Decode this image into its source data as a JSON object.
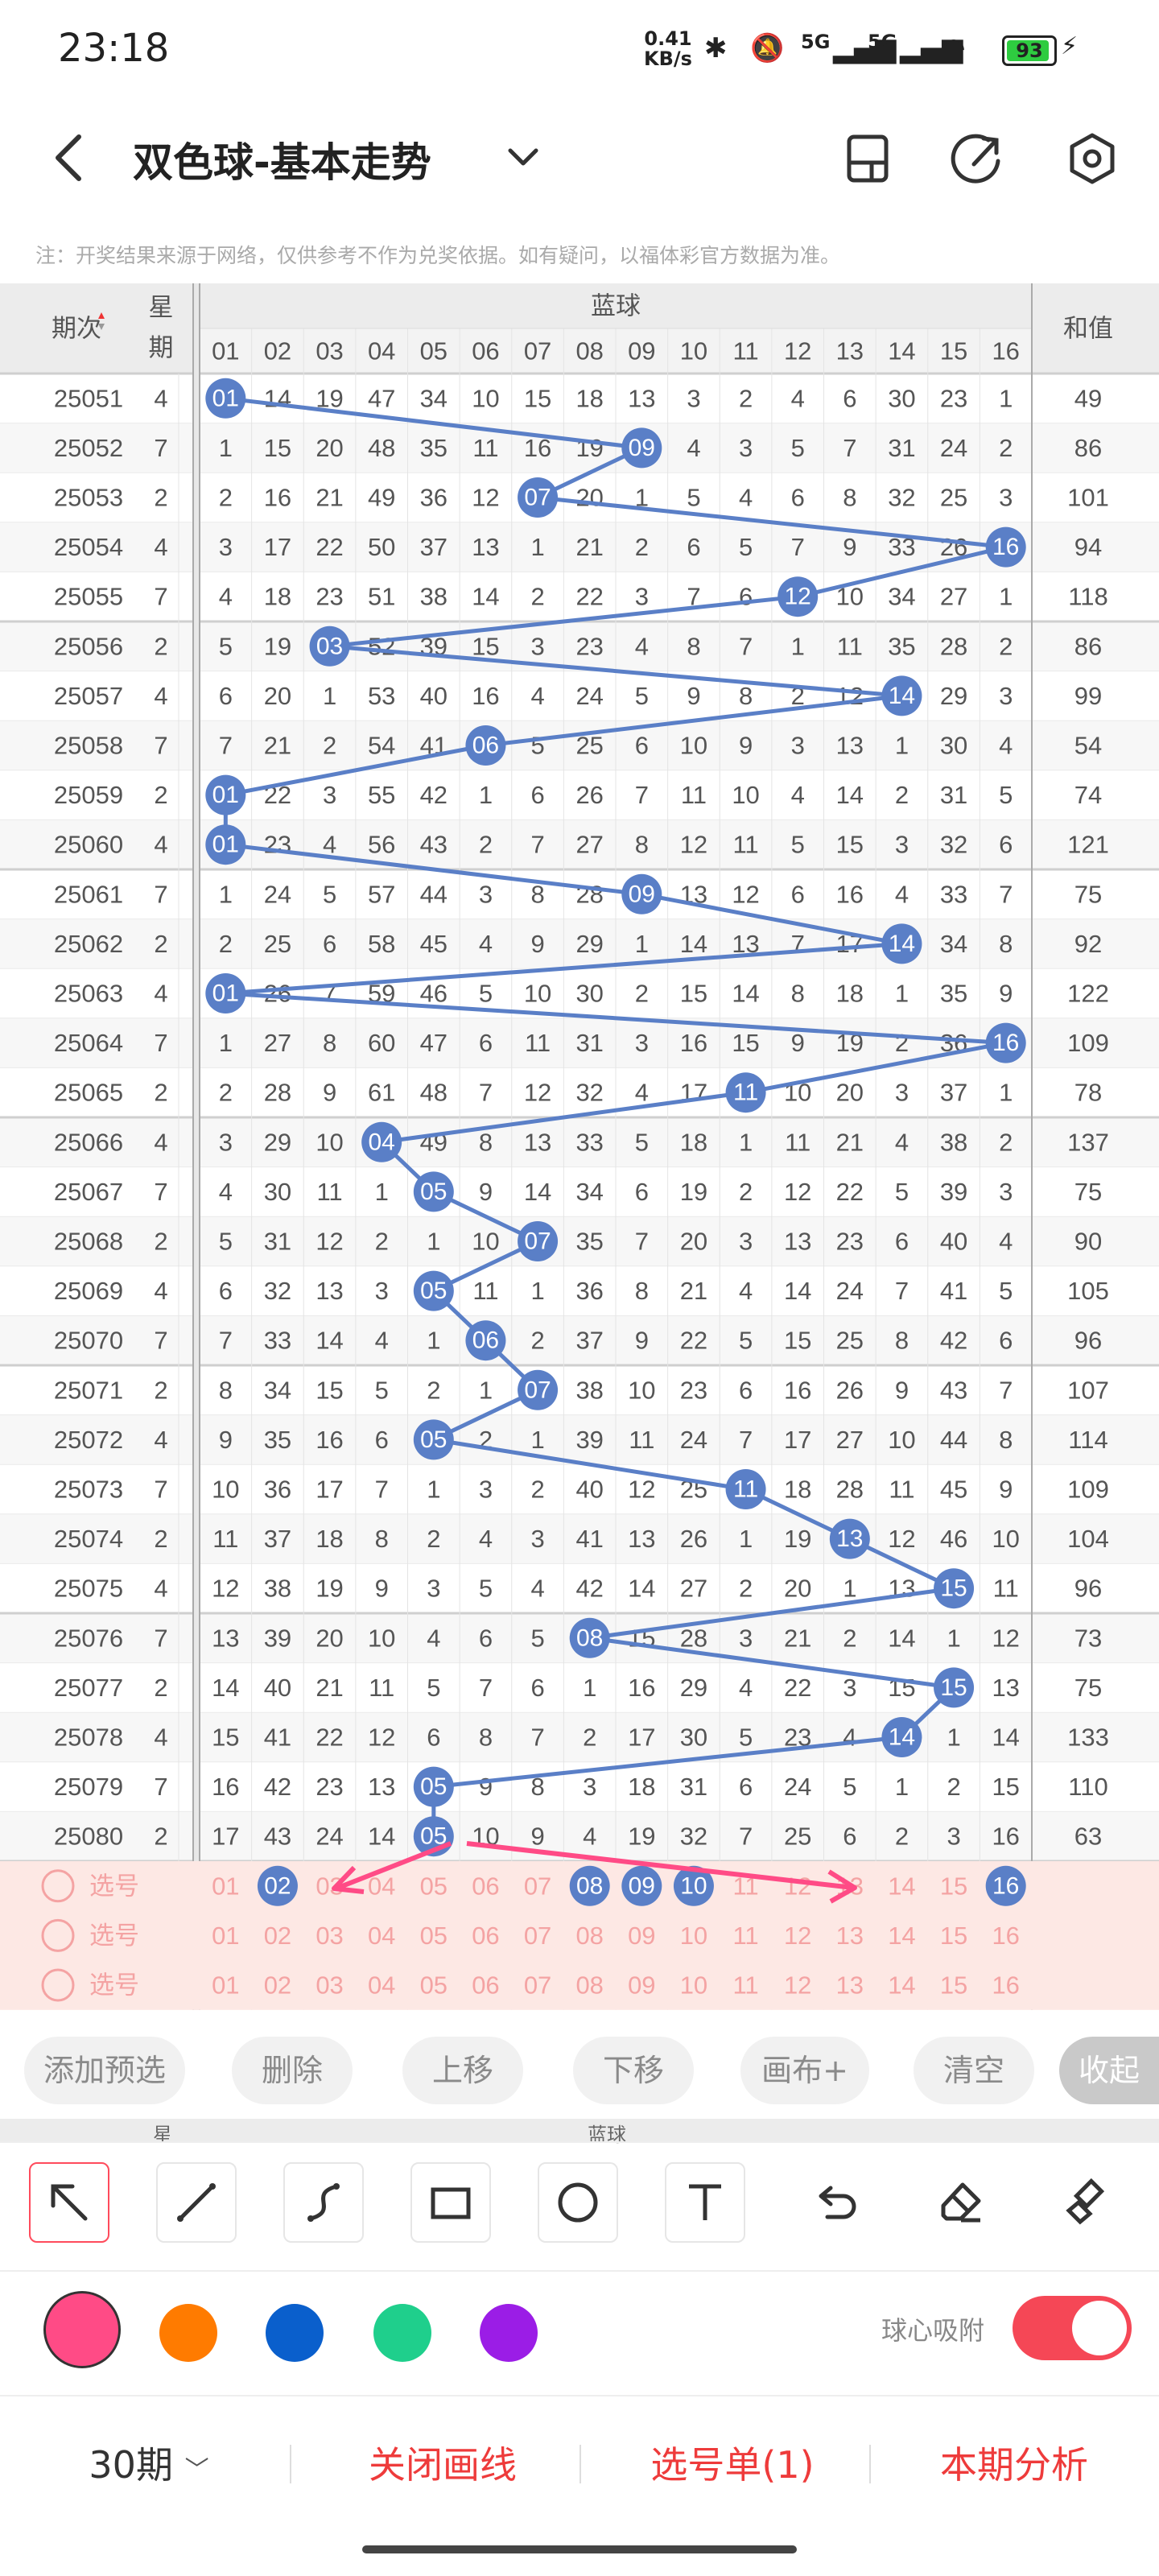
{
  "status": {
    "time": "23:18",
    "speed": "0.41\nKB/s",
    "battery": "93",
    "signal": "5G"
  },
  "title": "双色球-基本走势",
  "notice": "注：开奖结果来源于网络，仅供参考不作为兑奖依据。如有疑问，以福体彩官方数据为准。",
  "table": {
    "period_header": "期次",
    "week_header": "星期",
    "blue_header": "蓝球",
    "sum_header": "和值",
    "columns": [
      "01",
      "02",
      "03",
      "04",
      "05",
      "06",
      "07",
      "08",
      "09",
      "10",
      "11",
      "12",
      "13",
      "14",
      "15",
      "16"
    ],
    "rows": [
      {
        "period": "25051",
        "week": "4",
        "cells": [
          "01",
          "14",
          "19",
          "47",
          "34",
          "10",
          "15",
          "18",
          "13",
          "3",
          "2",
          "4",
          "6",
          "30",
          "23",
          "1"
        ],
        "sum": "49",
        "hit": 1
      },
      {
        "period": "25052",
        "week": "7",
        "cells": [
          "1",
          "15",
          "20",
          "48",
          "35",
          "11",
          "16",
          "19",
          "09",
          "4",
          "3",
          "5",
          "7",
          "31",
          "24",
          "2"
        ],
        "sum": "86",
        "hit": 9
      },
      {
        "period": "25053",
        "week": "2",
        "cells": [
          "2",
          "16",
          "21",
          "49",
          "36",
          "12",
          "07",
          "20",
          "1",
          "5",
          "4",
          "6",
          "8",
          "32",
          "25",
          "3"
        ],
        "sum": "101",
        "hit": 7
      },
      {
        "period": "25054",
        "week": "4",
        "cells": [
          "3",
          "17",
          "22",
          "50",
          "37",
          "13",
          "1",
          "21",
          "2",
          "6",
          "5",
          "7",
          "9",
          "33",
          "26",
          "16"
        ],
        "sum": "94",
        "hit": 16
      },
      {
        "period": "25055",
        "week": "7",
        "cells": [
          "4",
          "18",
          "23",
          "51",
          "38",
          "14",
          "2",
          "22",
          "3",
          "7",
          "6",
          "12",
          "10",
          "34",
          "27",
          "1"
        ],
        "sum": "118",
        "hit": 12
      },
      {
        "period": "25056",
        "week": "2",
        "cells": [
          "5",
          "19",
          "03",
          "52",
          "39",
          "15",
          "3",
          "23",
          "4",
          "8",
          "7",
          "1",
          "11",
          "35",
          "28",
          "2"
        ],
        "sum": "86",
        "hit": 3
      },
      {
        "period": "25057",
        "week": "4",
        "cells": [
          "6",
          "20",
          "1",
          "53",
          "40",
          "16",
          "4",
          "24",
          "5",
          "9",
          "8",
          "2",
          "12",
          "14",
          "29",
          "3"
        ],
        "sum": "99",
        "hit": 14
      },
      {
        "period": "25058",
        "week": "7",
        "cells": [
          "7",
          "21",
          "2",
          "54",
          "41",
          "06",
          "5",
          "25",
          "6",
          "10",
          "9",
          "3",
          "13",
          "1",
          "30",
          "4"
        ],
        "sum": "54",
        "hit": 6
      },
      {
        "period": "25059",
        "week": "2",
        "cells": [
          "01",
          "22",
          "3",
          "55",
          "42",
          "1",
          "6",
          "26",
          "7",
          "11",
          "10",
          "4",
          "14",
          "2",
          "31",
          "5"
        ],
        "sum": "74",
        "hit": 1
      },
      {
        "period": "25060",
        "week": "4",
        "cells": [
          "01",
          "23",
          "4",
          "56",
          "43",
          "2",
          "7",
          "27",
          "8",
          "12",
          "11",
          "5",
          "15",
          "3",
          "32",
          "6"
        ],
        "sum": "121",
        "hit": 1
      },
      {
        "period": "25061",
        "week": "7",
        "cells": [
          "1",
          "24",
          "5",
          "57",
          "44",
          "3",
          "8",
          "28",
          "09",
          "13",
          "12",
          "6",
          "16",
          "4",
          "33",
          "7"
        ],
        "sum": "75",
        "hit": 9
      },
      {
        "period": "25062",
        "week": "2",
        "cells": [
          "2",
          "25",
          "6",
          "58",
          "45",
          "4",
          "9",
          "29",
          "1",
          "14",
          "13",
          "7",
          "17",
          "14",
          "34",
          "8"
        ],
        "sum": "92",
        "hit": 14
      },
      {
        "period": "25063",
        "week": "4",
        "cells": [
          "01",
          "26",
          "7",
          "59",
          "46",
          "5",
          "10",
          "30",
          "2",
          "15",
          "14",
          "8",
          "18",
          "1",
          "35",
          "9"
        ],
        "sum": "122",
        "hit": 1
      },
      {
        "period": "25064",
        "week": "7",
        "cells": [
          "1",
          "27",
          "8",
          "60",
          "47",
          "6",
          "11",
          "31",
          "3",
          "16",
          "15",
          "9",
          "19",
          "2",
          "36",
          "16"
        ],
        "sum": "109",
        "hit": 16
      },
      {
        "period": "25065",
        "week": "2",
        "cells": [
          "2",
          "28",
          "9",
          "61",
          "48",
          "7",
          "12",
          "32",
          "4",
          "17",
          "11",
          "10",
          "20",
          "3",
          "37",
          "1"
        ],
        "sum": "78",
        "hit": 11
      },
      {
        "period": "25066",
        "week": "4",
        "cells": [
          "3",
          "29",
          "10",
          "04",
          "49",
          "8",
          "13",
          "33",
          "5",
          "18",
          "1",
          "11",
          "21",
          "4",
          "38",
          "2"
        ],
        "sum": "137",
        "hit": 4
      },
      {
        "period": "25067",
        "week": "7",
        "cells": [
          "4",
          "30",
          "11",
          "1",
          "05",
          "9",
          "14",
          "34",
          "6",
          "19",
          "2",
          "12",
          "22",
          "5",
          "39",
          "3"
        ],
        "sum": "75",
        "hit": 5
      },
      {
        "period": "25068",
        "week": "2",
        "cells": [
          "5",
          "31",
          "12",
          "2",
          "1",
          "10",
          "07",
          "35",
          "7",
          "20",
          "3",
          "13",
          "23",
          "6",
          "40",
          "4"
        ],
        "sum": "90",
        "hit": 7
      },
      {
        "period": "25069",
        "week": "4",
        "cells": [
          "6",
          "32",
          "13",
          "3",
          "05",
          "11",
          "1",
          "36",
          "8",
          "21",
          "4",
          "14",
          "24",
          "7",
          "41",
          "5"
        ],
        "sum": "105",
        "hit": 5
      },
      {
        "period": "25070",
        "week": "7",
        "cells": [
          "7",
          "33",
          "14",
          "4",
          "1",
          "06",
          "2",
          "37",
          "9",
          "22",
          "5",
          "15",
          "25",
          "8",
          "42",
          "6"
        ],
        "sum": "96",
        "hit": 6
      },
      {
        "period": "25071",
        "week": "2",
        "cells": [
          "8",
          "34",
          "15",
          "5",
          "2",
          "1",
          "07",
          "38",
          "10",
          "23",
          "6",
          "16",
          "26",
          "9",
          "43",
          "7"
        ],
        "sum": "107",
        "hit": 7
      },
      {
        "period": "25072",
        "week": "4",
        "cells": [
          "9",
          "35",
          "16",
          "6",
          "05",
          "2",
          "1",
          "39",
          "11",
          "24",
          "7",
          "17",
          "27",
          "10",
          "44",
          "8"
        ],
        "sum": "114",
        "hit": 5
      },
      {
        "period": "25073",
        "week": "7",
        "cells": [
          "10",
          "36",
          "17",
          "7",
          "1",
          "3",
          "2",
          "40",
          "12",
          "25",
          "11",
          "18",
          "28",
          "11",
          "45",
          "9"
        ],
        "sum": "109",
        "hit": 11
      },
      {
        "period": "25074",
        "week": "2",
        "cells": [
          "11",
          "37",
          "18",
          "8",
          "2",
          "4",
          "3",
          "41",
          "13",
          "26",
          "1",
          "19",
          "13",
          "12",
          "46",
          "10"
        ],
        "sum": "104",
        "hit": 13
      },
      {
        "period": "25075",
        "week": "4",
        "cells": [
          "12",
          "38",
          "19",
          "9",
          "3",
          "5",
          "4",
          "42",
          "14",
          "27",
          "2",
          "20",
          "1",
          "13",
          "15",
          "11"
        ],
        "sum": "96",
        "hit": 15
      },
      {
        "period": "25076",
        "week": "7",
        "cells": [
          "13",
          "39",
          "20",
          "10",
          "4",
          "6",
          "5",
          "08",
          "15",
          "28",
          "3",
          "21",
          "2",
          "14",
          "1",
          "12"
        ],
        "sum": "73",
        "hit": 8
      },
      {
        "period": "25077",
        "week": "2",
        "cells": [
          "14",
          "40",
          "21",
          "11",
          "5",
          "7",
          "6",
          "1",
          "16",
          "29",
          "4",
          "22",
          "3",
          "15",
          "15",
          "13"
        ],
        "sum": "75",
        "hit": 15
      },
      {
        "period": "25078",
        "week": "4",
        "cells": [
          "15",
          "41",
          "22",
          "12",
          "6",
          "8",
          "7",
          "2",
          "17",
          "30",
          "5",
          "23",
          "4",
          "14",
          "1",
          "14"
        ],
        "sum": "133",
        "hit": 14
      },
      {
        "period": "25079",
        "week": "7",
        "cells": [
          "16",
          "42",
          "23",
          "13",
          "05",
          "9",
          "8",
          "3",
          "18",
          "31",
          "6",
          "24",
          "5",
          "1",
          "2",
          "15"
        ],
        "sum": "110",
        "hit": 5
      },
      {
        "period": "25080",
        "week": "2",
        "cells": [
          "17",
          "43",
          "24",
          "14",
          "05",
          "10",
          "9",
          "4",
          "19",
          "32",
          "7",
          "25",
          "6",
          "2",
          "3",
          "16"
        ],
        "sum": "63",
        "hit": 5
      }
    ],
    "pick_rows": [
      {
        "label": "选号",
        "selected": [
          2,
          8,
          9,
          10,
          16
        ]
      },
      {
        "label": "选号",
        "selected": []
      },
      {
        "label": "选号",
        "selected": []
      }
    ],
    "lower_header_week": "星",
    "lower_header_blue": "蓝球"
  },
  "actions": [
    "添加预选",
    "删除",
    "上移",
    "下移",
    "画布+",
    "清空",
    "收起"
  ],
  "tools": [
    "select-arrow",
    "line",
    "curve",
    "rectangle",
    "circle",
    "text",
    "undo",
    "eraser",
    "clear-brush"
  ],
  "colors": [
    "#ff4b86",
    "#ff7b00",
    "#0a5fcc",
    "#1fcf8c",
    "#9b1de6"
  ],
  "magnet_label": "球心吸附",
  "bottom": {
    "period_select": "30期",
    "close_draw": "关闭画线",
    "pick_list": "选号单(1)",
    "analysis": "本期分析"
  },
  "accent": "#ee3b3b",
  "ball_color": "#5a7fc7"
}
